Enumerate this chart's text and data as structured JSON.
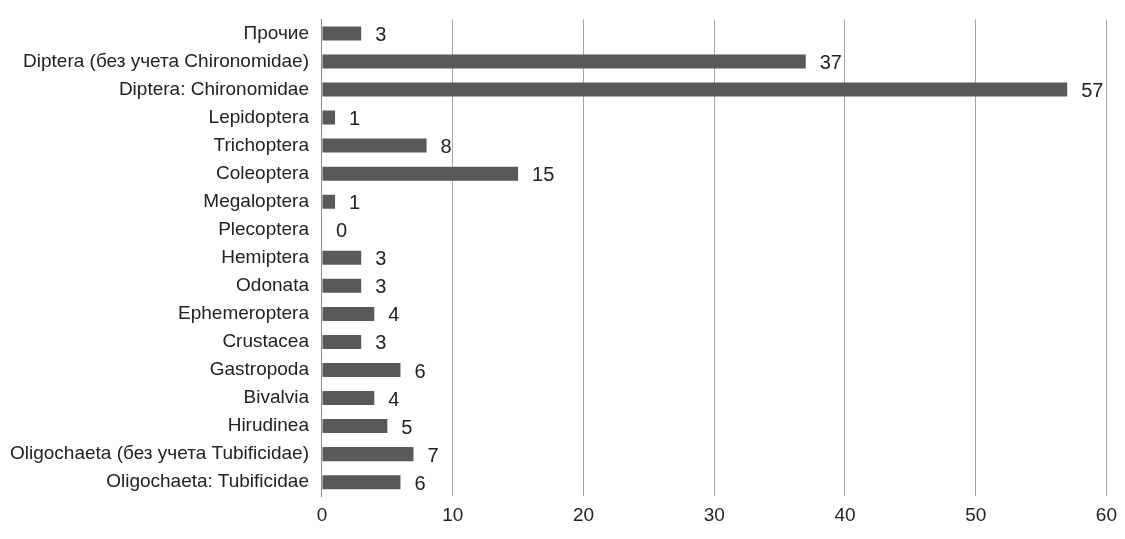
{
  "chart_data": {
    "type": "bar",
    "orientation": "horizontal",
    "categories": [
      "Прочие",
      "Diptera (без учета Chironomidae)",
      "Diptera: Chironomidae",
      "Lepidoptera",
      "Trichoptera",
      "Coleoptera",
      "Megaloptera",
      "Plecoptera",
      "Hemiptera",
      "Odonata",
      "Ephemeroptera",
      "Crustacea",
      "Gastropoda",
      "Bivalvia",
      "Hirudinea",
      "Oligochaeta (без учета Tubificidae)",
      "Oligochaeta: Tubificidae"
    ],
    "values": [
      3,
      37,
      57,
      1,
      8,
      15,
      1,
      0,
      3,
      3,
      4,
      3,
      6,
      4,
      5,
      7,
      6
    ],
    "color": "#595959",
    "xlim": [
      0,
      60
    ],
    "xticks": [
      0,
      10,
      20,
      30,
      40,
      50,
      60
    ],
    "grid": "x",
    "data_labels": true,
    "legend": false
  }
}
